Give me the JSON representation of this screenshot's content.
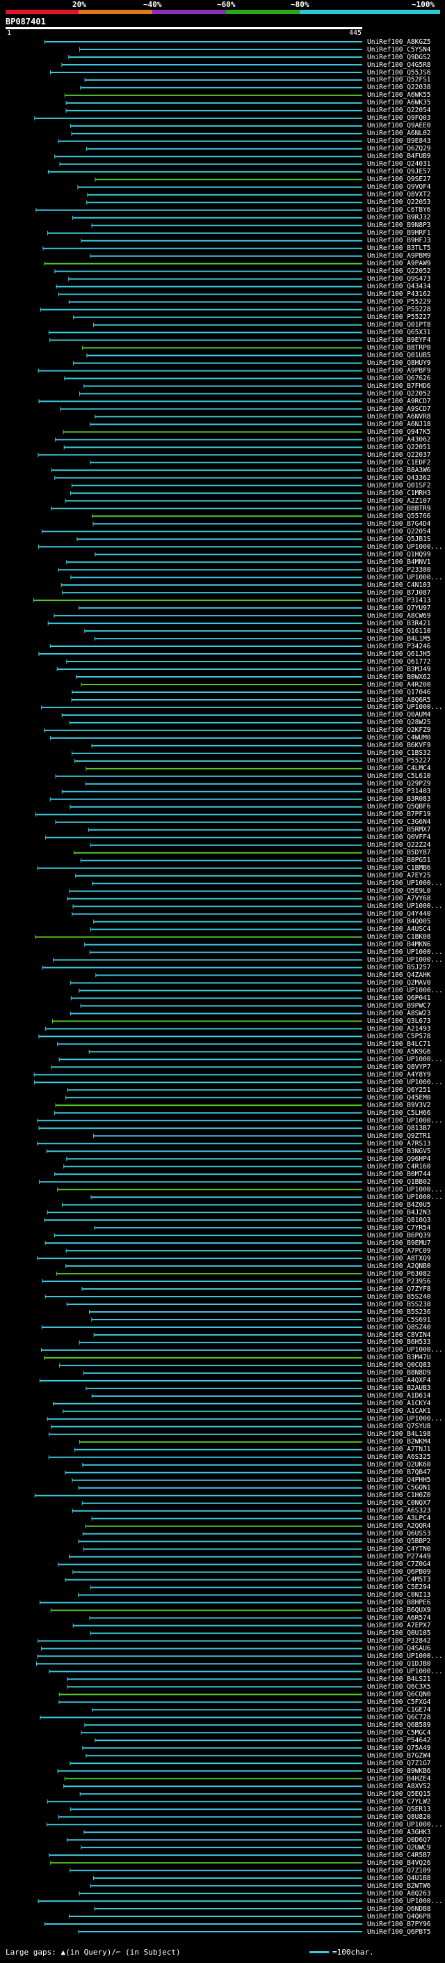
{
  "query": {
    "id": "BP087401",
    "start": "1",
    "end": "445"
  },
  "identity_scale": {
    "labels": [
      "20%",
      "~40%",
      "~60%",
      "~80%",
      "~100%"
    ],
    "colors": [
      "#e8102a",
      "#e07818",
      "#8a2fb8",
      "#28a818",
      "#28c8d8"
    ]
  },
  "hit_colors": {
    "high": "#3cc8dc",
    "mid": "#58c828"
  },
  "hits": [
    "UniRef100_A8KGZ5",
    "UniRef100_C5YSN4",
    "UniRef100_Q9DGS2",
    "UniRef100_Q4G5R8",
    "UniRef100_Q55JS6",
    "UniRef100_Q52FS1",
    "UniRef100_Q22038",
    "UniRef100_A6WK55",
    "UniRef100_A6WK35",
    "UniRef100_Q22054",
    "UniRef100_Q9FQ03",
    "UniRef100_Q9AEE0",
    "UniRef100_A6NL02",
    "UniRef100_B9E843",
    "UniRef100_Q6ZQ29",
    "UniRef100_B4FUB9",
    "UniRef100_Q24031",
    "UniRef100_Q9JE57",
    "UniRef100_Q9SE27",
    "UniRef100_Q9VQF4",
    "UniRef100_Q8VXT2",
    "UniRef100_Q22053",
    "UniRef100_C6TBY6",
    "UniRef100_B9RJ32",
    "UniRef100_B9N8P3",
    "UniRef100_B9HRF1",
    "UniRef100_B9HFJ3",
    "UniRef100_B3TLT5",
    "UniRef100_A9PBM9",
    "UniRef100_A9PAW9",
    "UniRef100_Q22052",
    "UniRef100_Q9S473",
    "UniRef100_Q43434",
    "UniRef100_P43162",
    "UniRef100_P55229",
    "UniRef100_P55228",
    "UniRef100_P55227",
    "UniRef100_Q01PT8",
    "UniRef100_Q65X31",
    "UniRef100_B9EYF4",
    "UniRef100_B8TRP0",
    "UniRef100_Q01UB5",
    "UniRef100_Q8HUY9",
    "UniRef100_A9PBF9",
    "UniRef100_Q67626",
    "UniRef100_B7FHD6",
    "UniRef100_Q22052",
    "UniRef100_A9RCD7",
    "UniRef100_A9SCD7",
    "UniRef100_A6NVR8",
    "UniRef100_A6NJ18",
    "UniRef100_Q947K5",
    "UniRef100_A43062",
    "UniRef100_Q22051",
    "UniRef100_Q22037",
    "UniRef100_C1EDF2",
    "UniRef100_B8A3W6",
    "UniRef100_Q43362",
    "UniRef100_Q01SF2",
    "UniRef100_C1MRH3",
    "UniRef100_A2Z107",
    "UniRef100_B8BTR9",
    "UniRef100_Q55766",
    "UniRef100_B7G4D4",
    "UniRef100_Q22054",
    "UniRef100_Q5JB1S",
    "UniRef100_UP1000...",
    "UniRef100_Q1HQ99",
    "UniRef100_B4MNV1",
    "UniRef100_P23380",
    "UniRef100_UP1000...",
    "UniRef100_C4N103",
    "UniRef100_B7J087",
    "UniRef100_P31413",
    "UniRef100_Q7YU97",
    "UniRef100_A8CW69",
    "UniRef100_B3R421",
    "UniRef100_Q16110",
    "UniRef100_B4L1M5",
    "UniRef100_P34246",
    "UniRef100_Q61JH5",
    "UniRef100_Q61772",
    "UniRef100_B3MJ49",
    "UniRef100_B0WX62",
    "UniRef100_A4R200",
    "UniRef100_Q17046",
    "UniRef100_A8Q6R5",
    "UniRef100_UP1000...",
    "UniRef100_Q0AUM4",
    "UniRef100_Q28W25",
    "UniRef100_Q2KFZ9",
    "UniRef100_C4WUM0",
    "UniRef100_B6KVF9",
    "UniRef100_C1BS32",
    "UniRef100_P55227",
    "UniRef100_C4LMC4",
    "UniRef100_C5L610",
    "UniRef100_Q29PZ9",
    "UniRef100_P31403",
    "UniRef100_B3R083",
    "UniRef100_Q5QBF6",
    "UniRef100_B7PF19",
    "UniRef100_C3G6N4",
    "UniRef100_B5RMX7",
    "UniRef100_Q0VFF4",
    "UniRef100_Q22Z24",
    "UniRef100_B5DY87",
    "UniRef100_B8PG51",
    "UniRef100_C1BMB6",
    "UniRef100_A7EY25",
    "UniRef100_UP1000...",
    "UniRef100_Q5E9L0",
    "UniRef100_A7VY68",
    "UniRef100_UP1000...",
    "UniRef100_Q4Y440",
    "UniRef100_B4Q005",
    "UniRef100_A4USC4",
    "UniRef100_C1BK08",
    "UniRef100_B4MKN6",
    "UniRef100_UP1000...",
    "UniRef100_UP1000...",
    "UniRef100_B5J257",
    "UniRef100_Q4ZAHK",
    "UniRef100_Q2MAV0",
    "UniRef100_UP1000...",
    "UniRef100_Q6P041",
    "UniRef100_B9PWC7",
    "UniRef100_A8SW23",
    "UniRef100_Q3L673",
    "UniRef100_A21493",
    "UniRef100_C5P578",
    "UniRef100_B4LC71",
    "UniRef100_A5K9G6",
    "UniRef100_UP1000...",
    "UniRef100_Q8VYP7",
    "UniRef100_A4Y8Y9",
    "UniRef100_UP1000...",
    "UniRef100_Q6Y251",
    "UniRef100_Q45EM0",
    "UniRef100_B9V3V2",
    "UniRef100_C5LH66",
    "UniRef100_UP1000...",
    "UniRef100_Q813B7",
    "UniRef100_Q9ZTR1",
    "UniRef100_A7RS13",
    "UniRef100_B3NGV5",
    "UniRef100_Q96HP4",
    "UniRef100_C4R160",
    "UniRef100_B0M744",
    "UniRef100_Q1BB02",
    "UniRef100_UP1000...",
    "UniRef100_UP1000...",
    "UniRef100_B4Z0U5",
    "UniRef100_B4J2N3",
    "UniRef100_Q810Q3",
    "UniRef100_C7YR54",
    "UniRef100_B6PQ39",
    "UniRef100_B9EMU7",
    "UniRef100_A7PC09",
    "UniRef100_A8TXQ9",
    "UniRef100_A2QNB0",
    "UniRef100_P63082",
    "UniRef100_P23956",
    "UniRef100_Q7ZYF8",
    "UniRef100_B5S240",
    "UniRef100_B5S238",
    "UniRef100_B5S236",
    "UniRef100_C5S691",
    "UniRef100_Q8SZ40",
    "UniRef100_C8VIN4",
    "UniRef100_B6H533",
    "UniRef100_UP1000...",
    "UniRef100_B3M47U",
    "UniRef100_Q0CQ83",
    "UniRef100_B8N8D9",
    "UniRef100_A4QXF4",
    "UniRef100_B2AUB3",
    "UniRef100_A1D614",
    "UniRef100_A1CKY4",
    "UniRef100_A1CAK1",
    "UniRef100_UP1000...",
    "UniRef100_Q7SYU8",
    "UniRef100_B4L198",
    "UniRef100_B2WKM4",
    "UniRef100_A7TNJ1",
    "UniRef100_A6S325",
    "UniRef100_Q2UK60",
    "UniRef100_B7QB47",
    "UniRef100_Q4PHH5",
    "UniRef100_C5GQN1",
    "UniRef100_C1H0Z0",
    "UniRef100_C0NQX7",
    "UniRef100_A6S323",
    "UniRef100_A3LPC4",
    "UniRef100_A2QQR4",
    "UniRef100_Q6US53",
    "UniRef100_Q5BBP2",
    "UniRef100_C4YTN0",
    "UniRef100_P27449",
    "UniRef100_C7Z0G4",
    "UniRef100_Q6PB09",
    "UniRef100_C4M5T3",
    "UniRef100_C5E294",
    "UniRef100_C0NI13",
    "UniRef100_B8HPE6",
    "UniRef100_B6QUX9",
    "UniRef100_A6R574",
    "UniRef100_A7EPX7",
    "UniRef100_Q0U105",
    "UniRef100_P32842",
    "UniRef100_Q4SAU6",
    "UniRef100_UP1000...",
    "UniRef100_Q1DJB0",
    "UniRef100_UP1000...",
    "UniRef100_B4LS21",
    "UniRef100_Q6C3X5",
    "UniRef100_Q6CQN0",
    "UniRef100_C5FXG4",
    "UniRef100_C1GE74",
    "UniRef100_Q6C728",
    "UniRef100_Q6B589",
    "UniRef100_C5MGC4",
    "UniRef100_P54642",
    "UniRef100_Q75A49",
    "UniRef100_B7GZW4",
    "UniRef100_Q7Z1G7",
    "UniRef100_B9WKB6",
    "UniRef100_B4HZE4",
    "UniRef100_A8XV52",
    "UniRef100_Q5EQ15",
    "UniRef100_C7YLW2",
    "UniRef100_Q5ER13",
    "UniRef100_Q8U820",
    "UniRef100_UP1000...",
    "UniRef100_A3GHK3",
    "UniRef100_Q0D6Q7",
    "UniRef100_Q2UWC9",
    "UniRef100_C4R5B7",
    "UniRef100_B4VQ26",
    "UniRef100_Q7Z109",
    "UniRef100_Q4U1B8",
    "UniRef100_B2WTW6",
    "UniRef100_A8Q263",
    "UniRef100_UP1000...",
    "UniRef100_Q6NDB8",
    "UniRef100_Q4Q6P8",
    "UniRef100_B7PY96",
    "UniRef100_Q6PBT5"
  ],
  "legend": {
    "gaps_label": "Large gaps: ▲(in Query)/⌐ (in Subject)",
    "scale_label": "=100char."
  }
}
